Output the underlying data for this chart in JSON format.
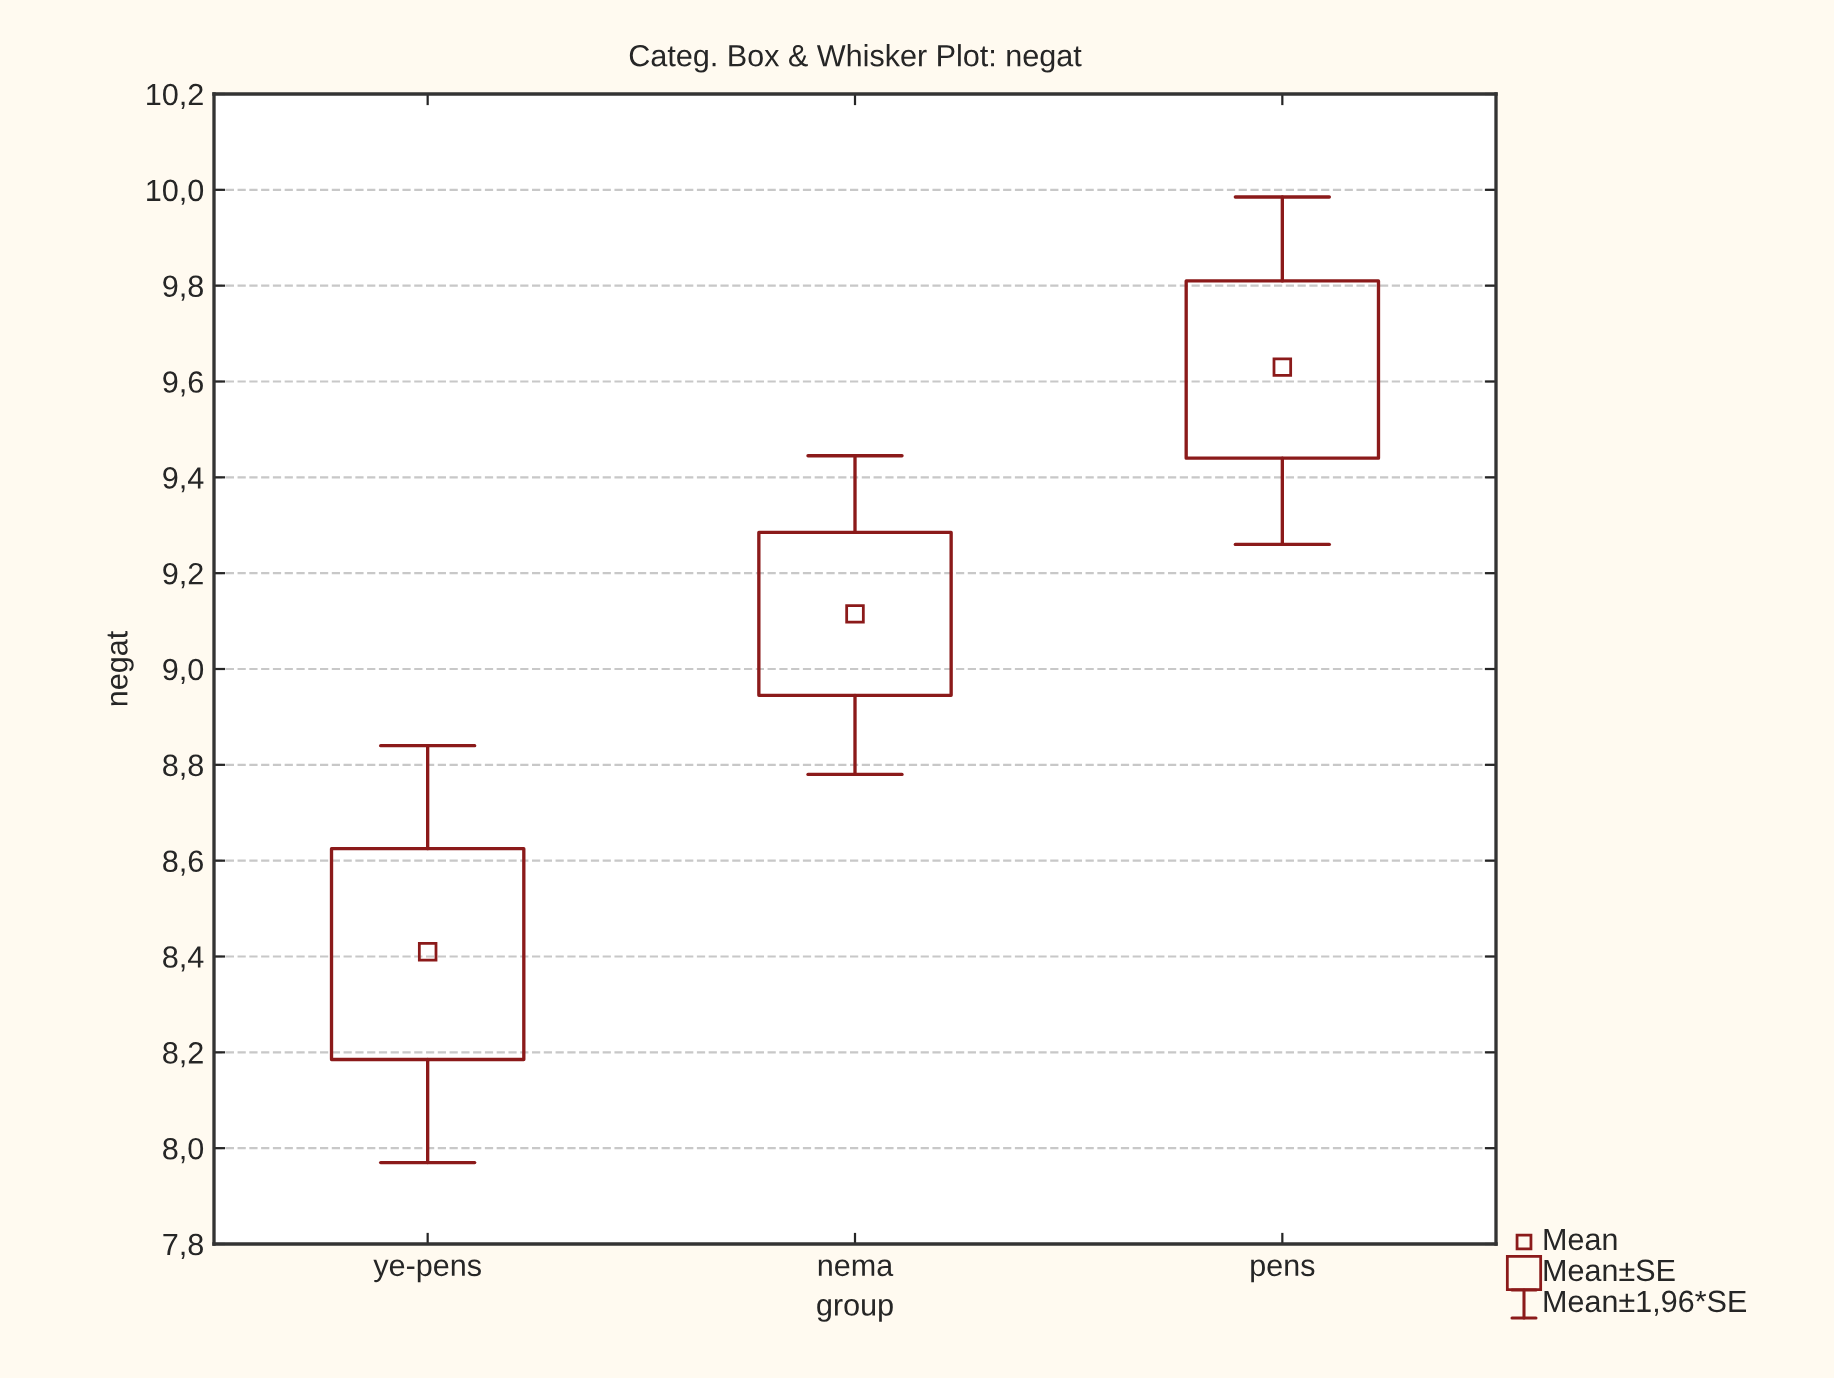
{
  "chart_data": {
    "type": "box",
    "title": "Categ. Box & Whisker Plot: negat",
    "xlabel": "group",
    "ylabel": "negat",
    "categories": [
      "ye-pens",
      "nema",
      "pens"
    ],
    "boxes": [
      {
        "low": 7.97,
        "q1": 8.185,
        "q3": 8.625,
        "high": 8.84,
        "mean": 8.41
      },
      {
        "low": 8.78,
        "q1": 8.945,
        "q3": 9.285,
        "high": 9.445,
        "mean": 9.115
      },
      {
        "low": 9.26,
        "q1": 9.44,
        "q3": 9.81,
        "high": 9.985,
        "mean": 9.63
      }
    ],
    "color": "#8b1a1a",
    "annotations": [
      "Mean",
      "Mean±SE",
      "Mean±1,96*SE"
    ],
    "ylim": [
      7.8,
      10.2
    ],
    "yticks": [
      {
        "value": 7.8,
        "label": "7,8"
      },
      {
        "value": 8.0,
        "label": "8,0"
      },
      {
        "value": 8.2,
        "label": "8,2"
      },
      {
        "value": 8.4,
        "label": "8,4"
      },
      {
        "value": 8.6,
        "label": "8,6"
      },
      {
        "value": 8.8,
        "label": "8,8"
      },
      {
        "value": 9.0,
        "label": "9,0"
      },
      {
        "value": 9.2,
        "label": "9,2"
      },
      {
        "value": 9.4,
        "label": "9,4"
      },
      {
        "value": 9.6,
        "label": "9,6"
      },
      {
        "value": 9.8,
        "label": "9,8"
      },
      {
        "value": 10.0,
        "label": "10,0"
      },
      {
        "value": 10.2,
        "label": "10,2"
      }
    ],
    "grid": "y"
  }
}
